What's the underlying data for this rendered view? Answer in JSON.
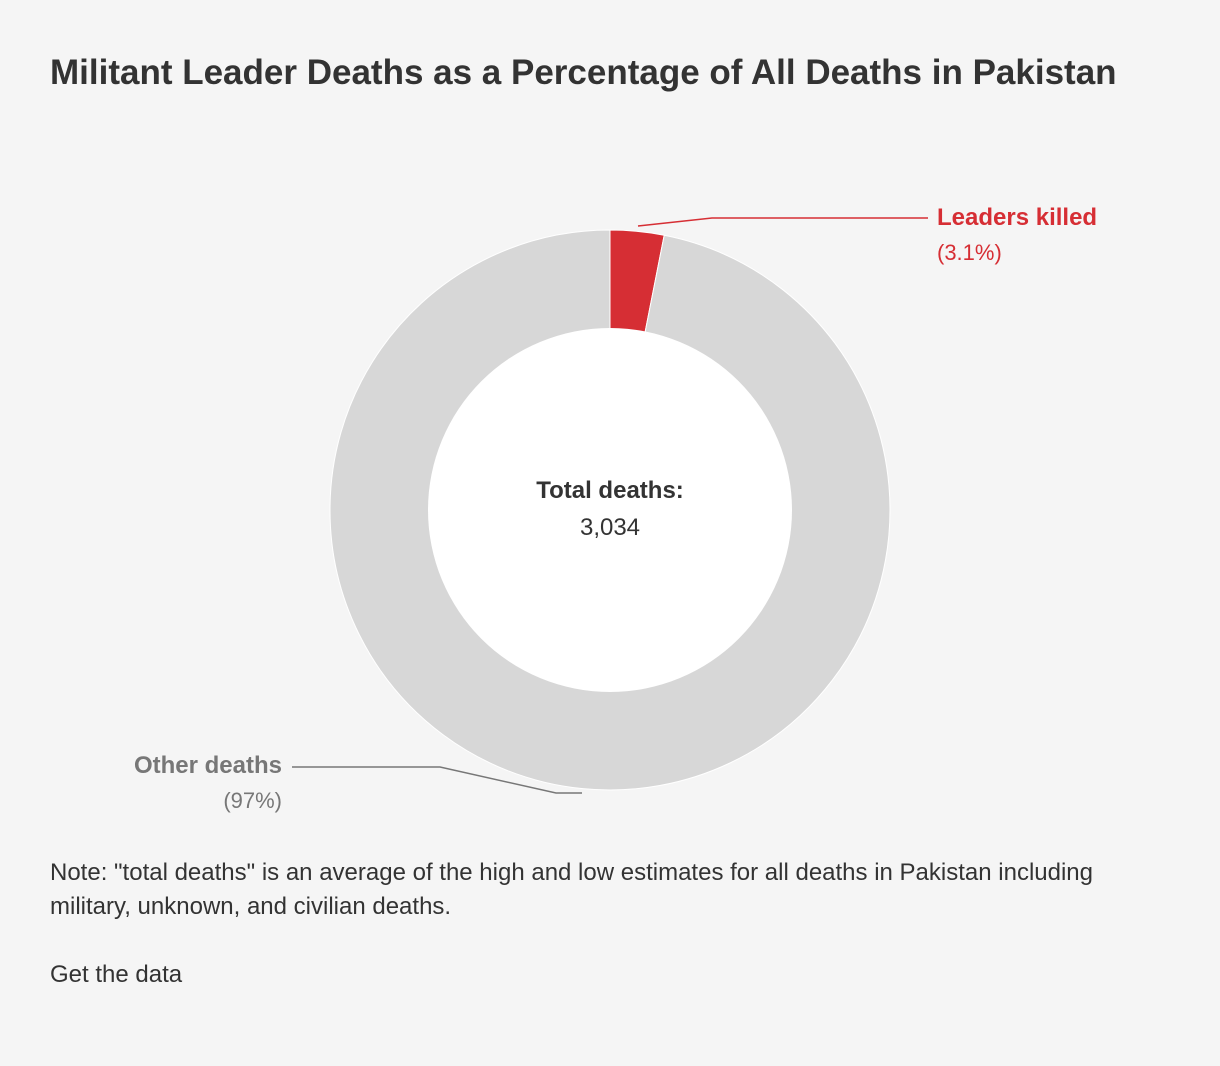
{
  "chart_data": {
    "type": "pie",
    "title": "Militant Leader Deaths as a Percentage of All Deaths in Pakistan",
    "center_label": "Total deaths:",
    "center_value": "3,034",
    "slices": [
      {
        "label": "Leaders killed",
        "percent_label": "(3.1%)",
        "value": 3.1,
        "color": "#d62e34"
      },
      {
        "label": "Other deaths",
        "percent_label": "(97%)",
        "value": 96.9,
        "color": "#d7d7d7"
      }
    ],
    "note": "Note: \"total deaths\" is an average of the high and low estimates for all deaths in Pakistan including military, unknown, and civilian deaths."
  },
  "footer": {
    "get_data_label": "Get the data"
  },
  "colors": {
    "background": "#f5f5f5",
    "inner": "#ffffff",
    "leader_label": "#d62e34",
    "other_label": "#777777",
    "text": "#333333"
  }
}
